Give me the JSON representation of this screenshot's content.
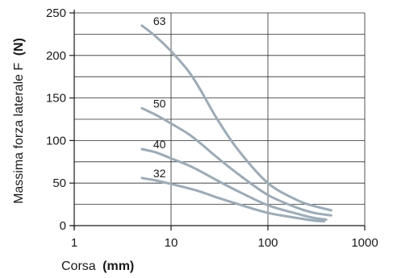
{
  "chart_data": {
    "type": "line",
    "xscale": "log",
    "xlim": [
      1,
      1000
    ],
    "ylim": [
      0,
      250
    ],
    "grid": true,
    "xlabel": "Corsa",
    "xlabel_unit": "(mm)",
    "ylabel": "Massima forza laterale F",
    "ylabel_unit": "(N)",
    "x_ticks": [
      {
        "value": 1,
        "label": "1"
      },
      {
        "value": 10,
        "label": "10"
      },
      {
        "value": 100,
        "label": "100"
      },
      {
        "value": 1000,
        "label": "1000"
      }
    ],
    "y_ticks": [
      {
        "value": 0,
        "label": "0"
      },
      {
        "value": 50,
        "label": "50"
      },
      {
        "value": 100,
        "label": "100"
      },
      {
        "value": 150,
        "label": "150"
      },
      {
        "value": 200,
        "label": "200"
      },
      {
        "value": 250,
        "label": "250"
      }
    ],
    "line_color": "#9aacb8",
    "series": [
      {
        "name": "63",
        "points": [
          [
            5,
            235
          ],
          [
            7,
            222
          ],
          [
            10,
            205
          ],
          [
            15,
            182
          ],
          [
            20,
            160
          ],
          [
            30,
            125
          ],
          [
            50,
            88
          ],
          [
            100,
            50
          ],
          [
            200,
            30
          ],
          [
            300,
            23
          ],
          [
            450,
            18
          ]
        ]
      },
      {
        "name": "50",
        "points": [
          [
            5,
            138
          ],
          [
            7,
            130
          ],
          [
            10,
            120
          ],
          [
            15,
            108
          ],
          [
            20,
            97
          ],
          [
            30,
            80
          ],
          [
            50,
            60
          ],
          [
            100,
            36
          ],
          [
            200,
            21
          ],
          [
            300,
            15
          ],
          [
            450,
            12
          ]
        ]
      },
      {
        "name": "40",
        "points": [
          [
            5,
            90
          ],
          [
            7,
            86
          ],
          [
            10,
            79
          ],
          [
            15,
            71
          ],
          [
            20,
            64
          ],
          [
            30,
            53
          ],
          [
            50,
            40
          ],
          [
            100,
            24
          ],
          [
            200,
            14
          ],
          [
            300,
            9
          ],
          [
            400,
            7
          ]
        ]
      },
      {
        "name": "32",
        "points": [
          [
            5,
            56
          ],
          [
            7,
            53
          ],
          [
            10,
            49
          ],
          [
            15,
            44
          ],
          [
            20,
            40
          ],
          [
            30,
            33
          ],
          [
            50,
            25
          ],
          [
            100,
            15
          ],
          [
            200,
            9
          ],
          [
            300,
            6
          ],
          [
            380,
            5
          ]
        ]
      }
    ]
  }
}
